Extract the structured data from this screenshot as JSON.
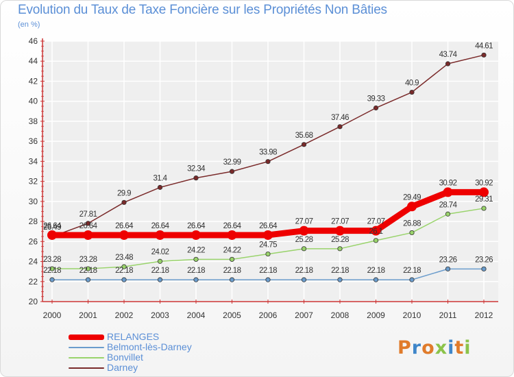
{
  "title": "Evolution du Taux de Taxe Foncière sur les Propriétés Non Bâties",
  "unit": "(en %)",
  "logo": "Proxiti",
  "colors": {
    "axis": "#cc3333",
    "grid": "#ffffff",
    "text": "#5b8fd6",
    "plot_bg": "#efefef"
  },
  "chart_data": {
    "type": "line",
    "x": [
      "2000",
      "2001",
      "2002",
      "2003",
      "2004",
      "2005",
      "2006",
      "2007",
      "2008",
      "2009",
      "2010",
      "2011",
      "2012"
    ],
    "ylim": [
      20,
      46
    ],
    "yticks": [
      20,
      22,
      24,
      26,
      28,
      30,
      32,
      34,
      36,
      38,
      40,
      42,
      44,
      46
    ],
    "grid": true,
    "legend_position": "bottom-left",
    "series": [
      {
        "name": "RELANGES",
        "color": "#ee0000",
        "values": [
          26.64,
          26.64,
          26.64,
          26.64,
          26.64,
          26.64,
          26.64,
          27.07,
          27.07,
          27.07,
          29.49,
          30.92,
          30.92
        ],
        "labels": [
          "26.64",
          "26.64",
          "26.64",
          "26.64",
          "26.64",
          "26.64",
          "26.64",
          "27.07",
          "27.07",
          "27.07",
          "29.49",
          "30.92",
          "30.92"
        ]
      },
      {
        "name": "Belmont-lès-Darney",
        "color": "#6a9ccc",
        "values": [
          22.18,
          22.18,
          22.18,
          22.18,
          22.18,
          22.18,
          22.18,
          22.18,
          22.18,
          22.18,
          22.18,
          23.26,
          23.26
        ],
        "labels": [
          "22.18",
          "22.18",
          "22.18",
          "22.18",
          "22.18",
          "22.18",
          "22.18",
          "22.18",
          "22.18",
          "22.18",
          "22.18",
          "23.26",
          "23.26"
        ]
      },
      {
        "name": "Bonvillet",
        "color": "#99d36b",
        "values": [
          23.28,
          23.28,
          23.48,
          24.02,
          24.22,
          24.22,
          24.75,
          25.28,
          25.28,
          26.1,
          26.88,
          28.74,
          29.31
        ],
        "labels": [
          "23.28",
          "23.28",
          "23.48",
          "24.02",
          "24.22",
          "24.22",
          "24.75",
          "25.28",
          "25.28",
          "26.1",
          "26.88",
          "28.74",
          "29.31"
        ]
      },
      {
        "name": "Darney",
        "color": "#7a2a2a",
        "values": [
          26.49,
          27.81,
          29.9,
          31.4,
          32.34,
          32.99,
          33.98,
          35.68,
          37.46,
          39.33,
          40.9,
          43.74,
          44.61
        ],
        "labels": [
          "26.49",
          "27.81",
          "29.9",
          "31.4",
          "32.34",
          "32.99",
          "33.98",
          "35.68",
          "37.46",
          "39.33",
          "40.9",
          "43.74",
          "44.61"
        ]
      }
    ]
  }
}
